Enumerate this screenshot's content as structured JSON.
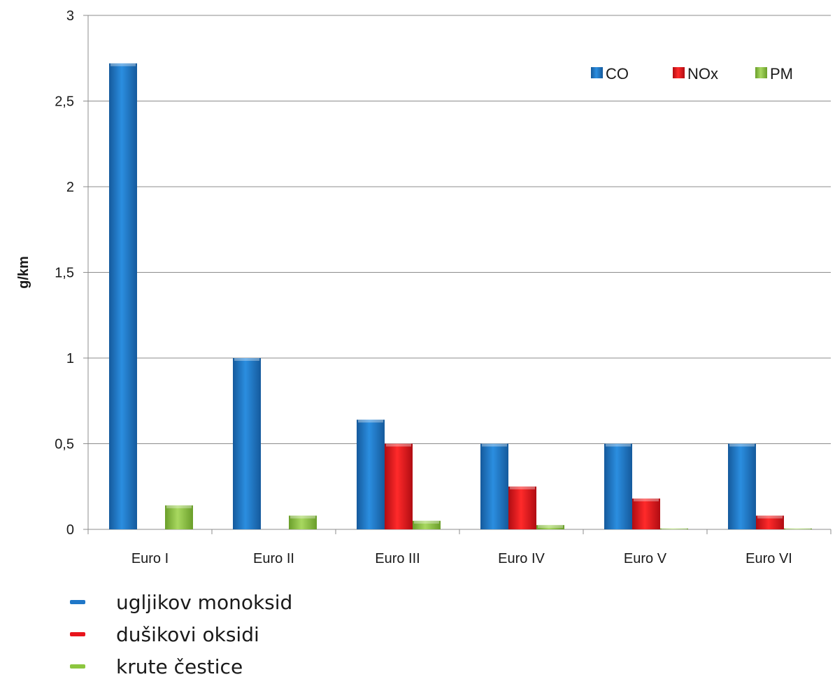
{
  "chart_data": {
    "type": "bar",
    "categories": [
      "Euro I",
      "Euro II",
      "Euro III",
      "Euro IV",
      "Euro V",
      "Euro VI"
    ],
    "series": [
      {
        "name": "CO",
        "color": "#1f77c8",
        "values": [
          2.72,
          1.0,
          0.64,
          0.5,
          0.5,
          0.5
        ]
      },
      {
        "name": "NOx",
        "color": "#e8141c",
        "values": [
          null,
          null,
          0.5,
          0.25,
          0.18,
          0.08
        ]
      },
      {
        "name": "PM",
        "color": "#8cc63f",
        "values": [
          0.14,
          0.08,
          0.05,
          0.025,
          0.005,
          0.005
        ]
      }
    ],
    "ylabel": "g/km",
    "xlabel": "",
    "title": "",
    "ylim": [
      0,
      3
    ],
    "yticks": [
      0,
      0.5,
      1,
      1.5,
      2,
      2.5,
      3
    ],
    "ytick_labels": [
      "0",
      "0,5",
      "1",
      "1,5",
      "2",
      "2,5",
      "3"
    ],
    "grid": true,
    "legend_position": "top-right"
  },
  "notes": [
    {
      "text": "ugljikov monoksid",
      "color": "#1f77c8"
    },
    {
      "text": "dušikovi oksidi",
      "color": "#e8141c"
    },
    {
      "text": "krute čestice",
      "color": "#8cc63f"
    }
  ]
}
